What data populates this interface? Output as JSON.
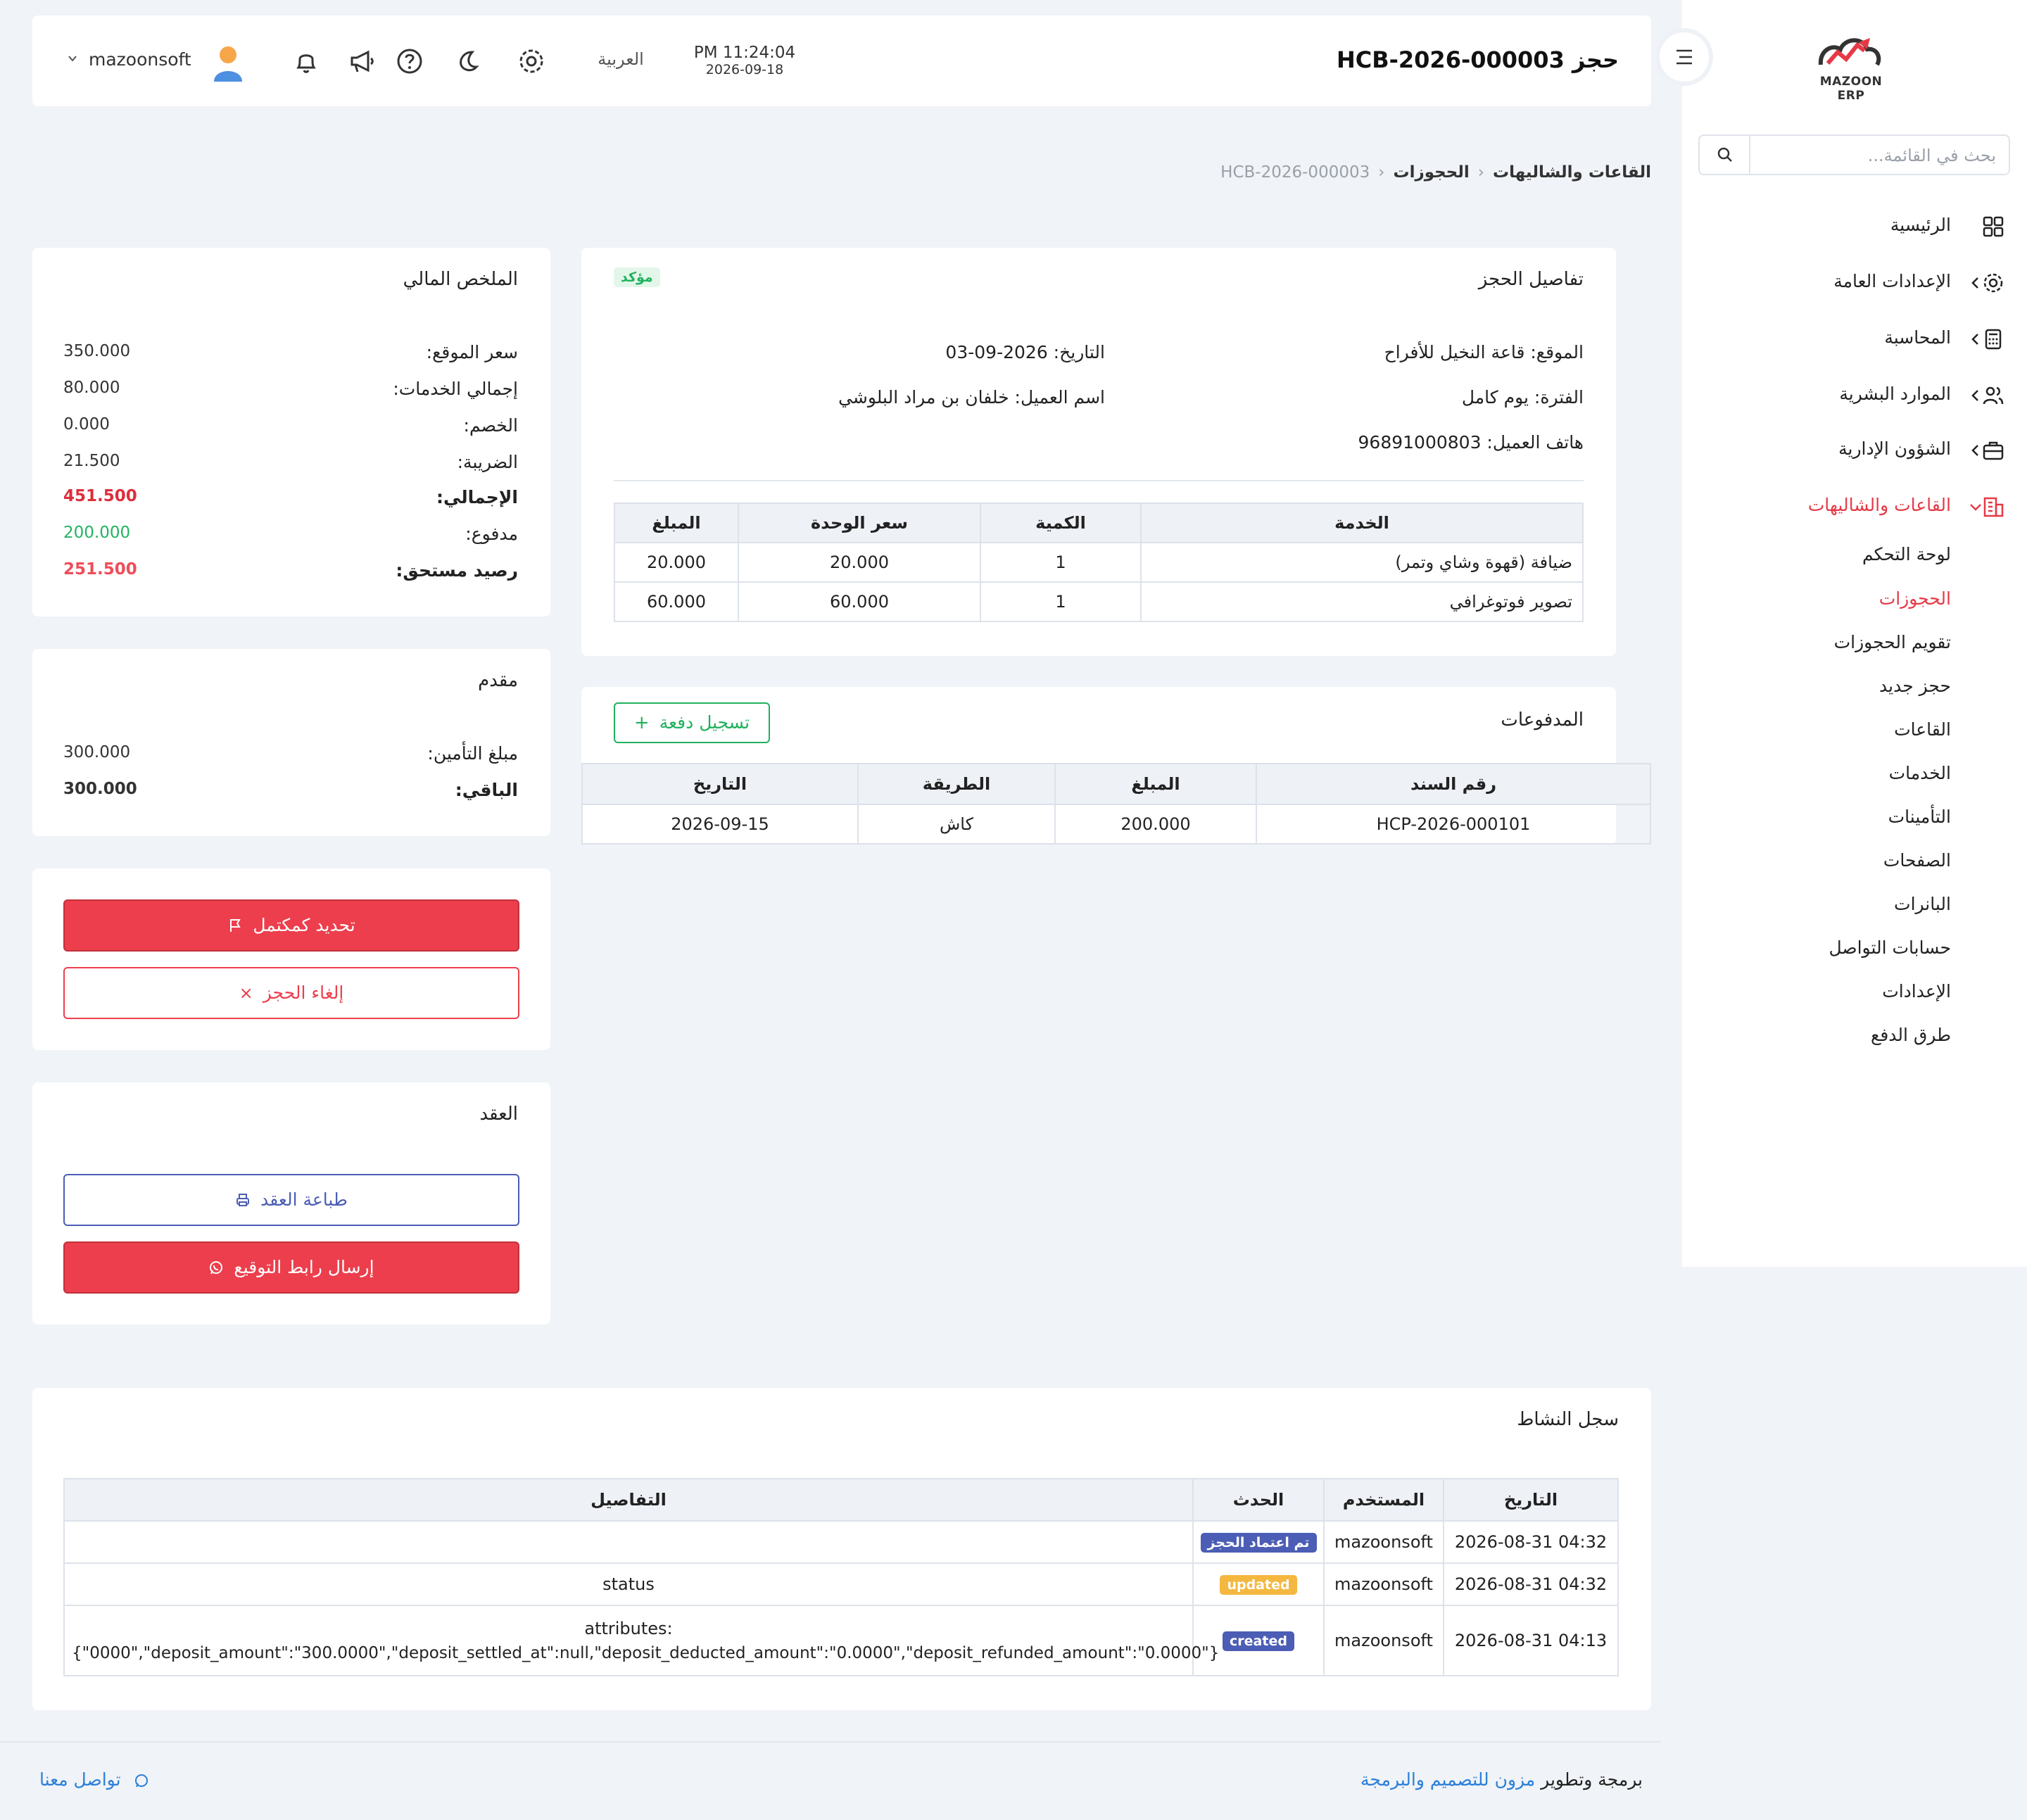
{
  "brand": {
    "logo_text": "MAZOON ERP"
  },
  "search": {
    "placeholder": "بحث في القائمة..."
  },
  "nav": {
    "items": [
      {
        "label": "الرئيسية",
        "icon": "grid-icon"
      },
      {
        "label": "الإعدادات العامة",
        "icon": "gear-icon"
      },
      {
        "label": "المحاسبة",
        "icon": "calculator-icon"
      },
      {
        "label": "الموارد البشرية",
        "icon": "users-icon"
      },
      {
        "label": "الشؤون الإدارية",
        "icon": "briefcase-icon"
      },
      {
        "label": "القاعات والشاليهات",
        "icon": "building-icon"
      }
    ],
    "sub_items": [
      "لوحة التحكم",
      "الحجوزات",
      "تقويم الحجوزات",
      "حجز جديد",
      "القاعات",
      "الخدمات",
      "التأمينات",
      "الصفحات",
      "البانرات",
      "حسابات التواصل",
      "الإعدادات",
      "طرق الدفع"
    ]
  },
  "header": {
    "title": "حجز HCB-2026-000003",
    "time": "PM 11:24:04",
    "date": "2026-09-18",
    "language": "العربية",
    "username": "mazoonsoft"
  },
  "breadcrumb": {
    "section": "القاعات والشاليهات",
    "page": "الحجوزات",
    "current": "HCB-2026-000003"
  },
  "booking": {
    "title": "تفاصيل الحجز",
    "status": "مؤكد",
    "location": "الموقع: قاعة النخيل للأفراح",
    "date": "التاريخ: 2026-09-03",
    "period": "الفترة: يوم كامل",
    "customer": "اسم العميل: خلفان بن مراد البلوشي",
    "phone": "هاتف العميل: 96891000803",
    "services_columns": [
      "الخدمة",
      "الكمية",
      "سعر الوحدة",
      "المبلغ"
    ],
    "services": [
      {
        "service": "ضيافة (قهوة وشاي وتمر)",
        "qty": "1",
        "unit_price": "20.000",
        "amount": "20.000"
      },
      {
        "service": "تصوير فوتوغرافي",
        "qty": "1",
        "unit_price": "60.000",
        "amount": "60.000"
      }
    ]
  },
  "payments": {
    "title": "المدفوعات",
    "add_label": "تسجيل دفعة",
    "columns": [
      "رقم السند",
      "المبلغ",
      "الطريقة",
      "التاريخ"
    ],
    "rows": [
      {
        "voucher": "HCP-2026-000101",
        "amount": "200.000",
        "method": "كاش",
        "date": "2026-09-15"
      }
    ]
  },
  "summary": {
    "title": "الملخص المالي",
    "rows": [
      {
        "label": "سعر الموقع:",
        "value": "350.000"
      },
      {
        "label": "إجمالي الخدمات:",
        "value": "80.000"
      },
      {
        "label": "الخصم:",
        "value": "0.000"
      },
      {
        "label": "الضريبة:",
        "value": "21.500"
      },
      {
        "label": "الإجمالي:",
        "value": "451.500"
      },
      {
        "label": "مدفوع:",
        "value": "200.000"
      },
      {
        "label": "رصيد مستحق:",
        "value": "251.500"
      }
    ]
  },
  "deposit": {
    "title": "مقدم",
    "rows": [
      {
        "label": "مبلغ التأمين:",
        "value": "300.000"
      },
      {
        "label": "الباقي:",
        "value": "300.000"
      }
    ]
  },
  "actions": {
    "complete_label": "تحديد كمكتمل",
    "cancel_label": "إلغاء الحجز"
  },
  "contract": {
    "title": "العقد",
    "print_label": "طباعة العقد",
    "send_label": "إرسال رابط التوقيع"
  },
  "activity": {
    "title": "سجل النشاط",
    "columns": [
      "التاريخ",
      "المستخدم",
      "الحدث",
      "التفاصيل"
    ],
    "rows": [
      {
        "date": "2026-08-31 04:32",
        "user": "mazoonsoft",
        "event": "تم اعتماد الحجز",
        "details": ""
      },
      {
        "date": "2026-08-31 04:32",
        "user": "mazoonsoft",
        "event": "updated",
        "details": "status"
      },
      {
        "date": "2026-08-31 04:13",
        "user": "mazoonsoft",
        "event": "created",
        "details_line1": "attributes:",
        "details_line2": "{\"0000\",\"deposit_amount\":\"300.0000\",\"deposit_settled_at\":null,\"deposit_deducted_amount\":\"0.0000\",\"deposit_refunded_amount\":\"0.0000\"}"
      }
    ]
  },
  "footer": {
    "credit_prefix": "برمجة وتطوير",
    "credit_company": "مزون للتصميم والبرمجة",
    "contact": "تواصل معنا"
  },
  "colors": {
    "accent_red": "#ec3e4c",
    "success_green": "#21b45f",
    "badge_blue": "#4b5db5",
    "badge_orange": "#f4b740"
  }
}
